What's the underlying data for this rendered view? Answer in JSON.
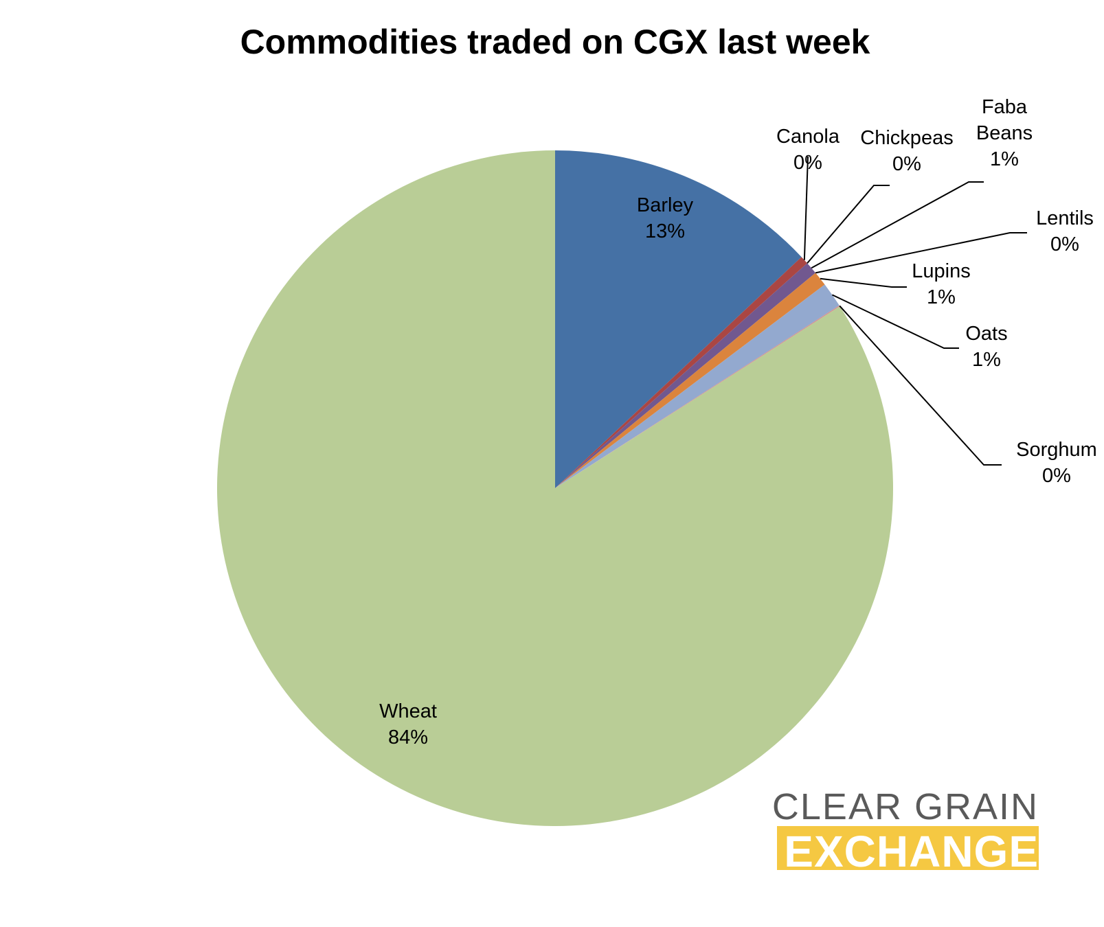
{
  "chart_data": {
    "type": "pie",
    "title": "Commodities traded on CGX last week",
    "slices": [
      {
        "name": "Barley",
        "value": 13.0,
        "label": "13%",
        "color": "#4571a5"
      },
      {
        "name": "Canola",
        "value": 0.4,
        "label": "0%",
        "color": "#aa4643"
      },
      {
        "name": "Chickpeas",
        "value": 0.0,
        "label": "0%",
        "color": "#89a54e"
      },
      {
        "name": "Faba Beans",
        "value": 0.6,
        "label": "1%",
        "color": "#71588f"
      },
      {
        "name": "Lentils",
        "value": 0.0,
        "label": "0%",
        "color": "#4198af"
      },
      {
        "name": "Lupins",
        "value": 0.7,
        "label": "1%",
        "color": "#db843d"
      },
      {
        "name": "Oats",
        "value": 1.2,
        "label": "1%",
        "color": "#93a9cf"
      },
      {
        "name": "Sorghum",
        "value": 0.05,
        "label": "0%",
        "color": "#d19392"
      },
      {
        "name": "Wheat",
        "value": 84.05,
        "label": "84%",
        "color": "#b9cd96"
      }
    ],
    "start_angle": "12 o'clock",
    "direction": "clockwise",
    "legend": "none",
    "data_labels": "category name and percentage"
  },
  "logo": {
    "line1": "CLEAR GRAIN",
    "line2": "EXCHANGE",
    "line2_bg": "#f5c842"
  }
}
